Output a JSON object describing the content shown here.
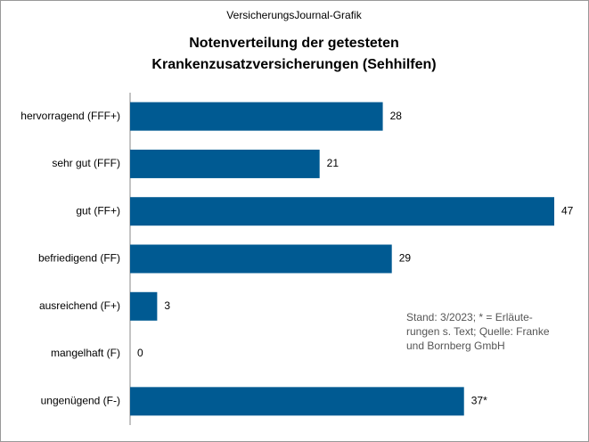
{
  "chart_data": {
    "type": "hbar",
    "source_label": "VersicherungsJournal-Grafik",
    "title": [
      "Notenverteilung der getesteten",
      "Krankenzusatzversicherungen (Sehhilfen)"
    ],
    "categories": [
      "hervorragend (FFF+)",
      "sehr gut (FFF)",
      "gut (FF+)",
      "befriedigend (FF)",
      "ausreichend (F+)",
      "mangelhaft (F)",
      "ungenügend (F-)"
    ],
    "values": [
      28,
      21,
      47,
      29,
      3,
      0,
      37
    ],
    "value_labels": [
      "28",
      "21",
      "47",
      "29",
      "3",
      "0",
      "37*"
    ],
    "color": "#005a92",
    "note": [
      "Stand: 3/2023; * = Erläute-",
      "rungen s. Text; Quelle: Franke",
      "und Bornberg GmbH"
    ]
  }
}
